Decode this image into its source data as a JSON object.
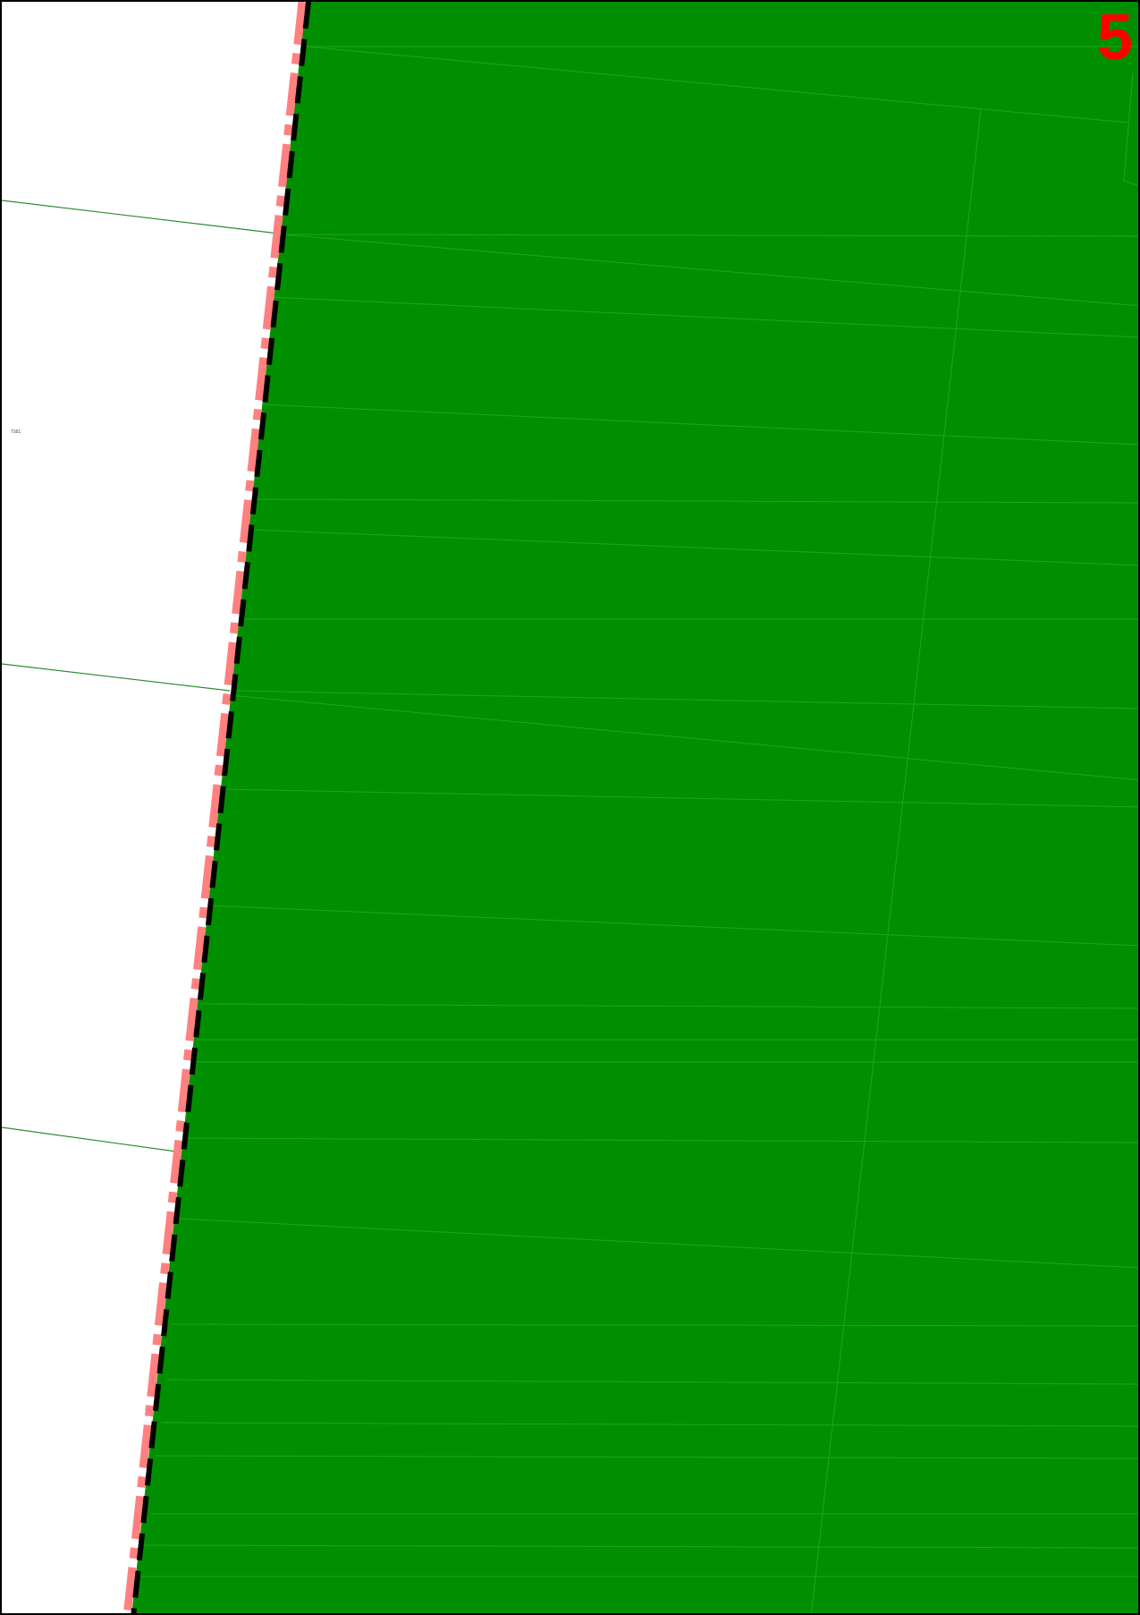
{
  "map": {
    "sheet_number": "5",
    "plot_label": "7161",
    "colors": {
      "field_fill": "#008f00",
      "field_line": "#3fb43f",
      "boundary_outer": "#ff8080",
      "boundary_inner": "#000000",
      "parcel_line": "#2e8b2e",
      "sheet_number": "#ff0000",
      "frame": "#000000"
    },
    "layers": [
      "field-area",
      "parcel-lines",
      "boundary-line"
    ]
  }
}
